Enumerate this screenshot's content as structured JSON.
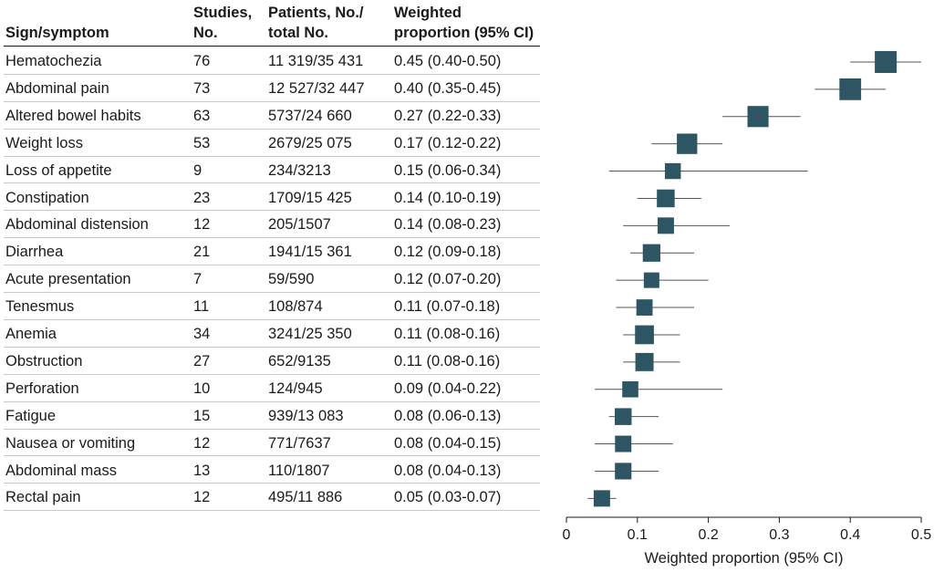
{
  "headers": {
    "sign": "Sign/symptom",
    "studies_1": "Studies,",
    "studies_2": "No.",
    "patients_1": "Patients, No./",
    "patients_2": "total No.",
    "proportion_1": "Weighted",
    "proportion_2": "proportion (95% CI)"
  },
  "rows": [
    {
      "sign": "Hematochezia",
      "studies": "76",
      "patients": "11 319/35 431",
      "proportion": "0.45 (0.40-0.50)"
    },
    {
      "sign": "Abdominal pain",
      "studies": "73",
      "patients": "12 527/32 447",
      "proportion": "0.40 (0.35-0.45)"
    },
    {
      "sign": "Altered bowel habits",
      "studies": "63",
      "patients": "5737/24 660",
      "proportion": "0.27 (0.22-0.33)"
    },
    {
      "sign": "Weight loss",
      "studies": "53",
      "patients": "2679/25 075",
      "proportion": "0.17 (0.12-0.22)"
    },
    {
      "sign": "Loss of appetite",
      "studies": "9",
      "patients": "234/3213",
      "proportion": "0.15 (0.06-0.34)"
    },
    {
      "sign": "Constipation",
      "studies": "23",
      "patients": "1709/15 425",
      "proportion": "0.14 (0.10-0.19)"
    },
    {
      "sign": "Abdominal distension",
      "studies": "12",
      "patients": "205/1507",
      "proportion": "0.14 (0.08-0.23)"
    },
    {
      "sign": "Diarrhea",
      "studies": "21",
      "patients": "1941/15 361",
      "proportion": "0.12 (0.09-0.18)"
    },
    {
      "sign": "Acute presentation",
      "studies": "7",
      "patients": "59/590",
      "proportion": "0.12 (0.07-0.20)"
    },
    {
      "sign": "Tenesmus",
      "studies": "11",
      "patients": "108/874",
      "proportion": "0.11 (0.07-0.18)"
    },
    {
      "sign": "Anemia",
      "studies": "34",
      "patients": "3241/25 350",
      "proportion": "0.11 (0.08-0.16)"
    },
    {
      "sign": "Obstruction",
      "studies": "27",
      "patients": "652/9135",
      "proportion": "0.11 (0.08-0.16)"
    },
    {
      "sign": "Perforation",
      "studies": "10",
      "patients": "124/945",
      "proportion": "0.09 (0.04-0.22)"
    },
    {
      "sign": "Fatigue",
      "studies": "15",
      "patients": "939/13 083",
      "proportion": "0.08 (0.06-0.13)"
    },
    {
      "sign": "Nausea or vomiting",
      "studies": "12",
      "patients": "771/7637",
      "proportion": "0.08 (0.04-0.15)"
    },
    {
      "sign": "Abdominal mass",
      "studies": "13",
      "patients": "110/1807",
      "proportion": "0.08 (0.04-0.13)"
    },
    {
      "sign": "Rectal pain",
      "studies": "12",
      "patients": "495/11 886",
      "proportion": "0.05 (0.03-0.07)"
    }
  ],
  "chart_data": {
    "type": "forest",
    "xlabel": "Weighted proportion (95% CI)",
    "xlim": [
      0,
      0.5
    ],
    "xticks": [
      0,
      0.1,
      0.2,
      0.3,
      0.4,
      0.5
    ],
    "xtick_labels": [
      "0",
      "0.1",
      "0.2",
      "0.3",
      "0.4",
      "0.5"
    ],
    "marker_color": "#2d5563",
    "line_color": "#555555",
    "points": [
      {
        "label": "Hematochezia",
        "estimate": 0.45,
        "lower": 0.4,
        "upper": 0.5,
        "weight": 76
      },
      {
        "label": "Abdominal pain",
        "estimate": 0.4,
        "lower": 0.35,
        "upper": 0.45,
        "weight": 73
      },
      {
        "label": "Altered bowel habits",
        "estimate": 0.27,
        "lower": 0.22,
        "upper": 0.33,
        "weight": 63
      },
      {
        "label": "Weight loss",
        "estimate": 0.17,
        "lower": 0.12,
        "upper": 0.22,
        "weight": 53
      },
      {
        "label": "Loss of appetite",
        "estimate": 0.15,
        "lower": 0.06,
        "upper": 0.34,
        "weight": 9
      },
      {
        "label": "Constipation",
        "estimate": 0.14,
        "lower": 0.1,
        "upper": 0.19,
        "weight": 23
      },
      {
        "label": "Abdominal distension",
        "estimate": 0.14,
        "lower": 0.08,
        "upper": 0.23,
        "weight": 12
      },
      {
        "label": "Diarrhea",
        "estimate": 0.12,
        "lower": 0.09,
        "upper": 0.18,
        "weight": 21
      },
      {
        "label": "Acute presentation",
        "estimate": 0.12,
        "lower": 0.07,
        "upper": 0.2,
        "weight": 7
      },
      {
        "label": "Tenesmus",
        "estimate": 0.11,
        "lower": 0.07,
        "upper": 0.18,
        "weight": 11
      },
      {
        "label": "Anemia",
        "estimate": 0.11,
        "lower": 0.08,
        "upper": 0.16,
        "weight": 34
      },
      {
        "label": "Obstruction",
        "estimate": 0.11,
        "lower": 0.08,
        "upper": 0.16,
        "weight": 27
      },
      {
        "label": "Perforation",
        "estimate": 0.09,
        "lower": 0.04,
        "upper": 0.22,
        "weight": 10
      },
      {
        "label": "Fatigue",
        "estimate": 0.08,
        "lower": 0.06,
        "upper": 0.13,
        "weight": 15
      },
      {
        "label": "Nausea or vomiting",
        "estimate": 0.08,
        "lower": 0.04,
        "upper": 0.15,
        "weight": 12
      },
      {
        "label": "Abdominal mass",
        "estimate": 0.08,
        "lower": 0.04,
        "upper": 0.13,
        "weight": 13
      },
      {
        "label": "Rectal pain",
        "estimate": 0.05,
        "lower": 0.03,
        "upper": 0.07,
        "weight": 12
      }
    ]
  }
}
